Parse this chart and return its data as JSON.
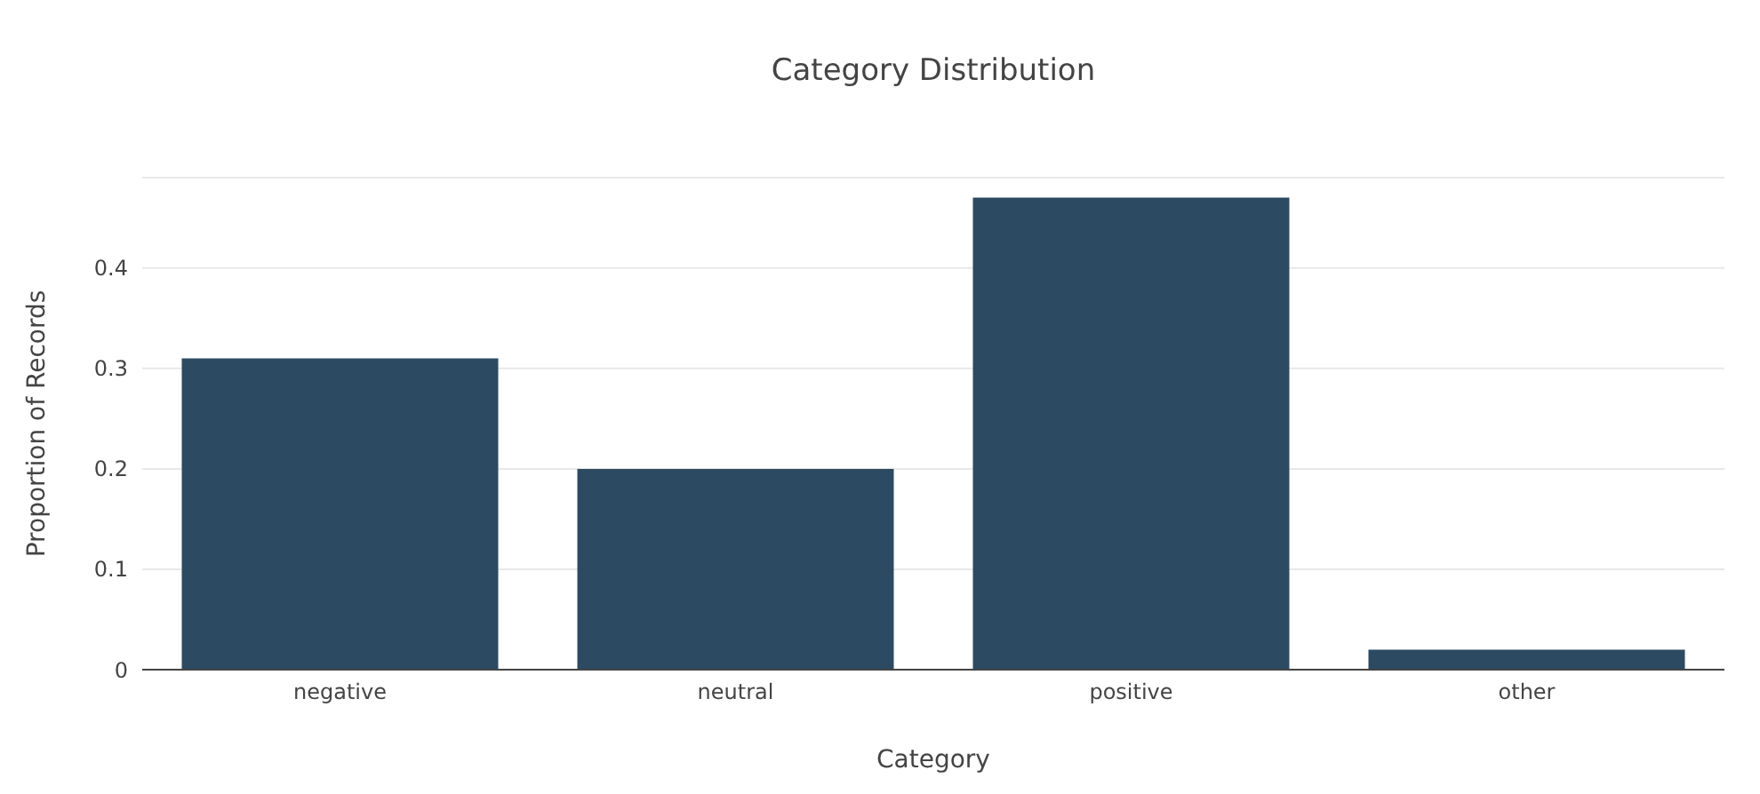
{
  "chart_data": {
    "type": "bar",
    "title": "Category Distribution",
    "xlabel": "Category",
    "ylabel": "Proportion of Records",
    "categories": [
      "negative",
      "neutral",
      "positive",
      "other"
    ],
    "values": [
      0.31,
      0.2,
      0.47,
      0.02
    ],
    "color": "#2c4a62",
    "ylim": [
      0,
      0.49
    ],
    "yticks": [
      0,
      0.1,
      0.2,
      0.3,
      0.4
    ],
    "grid": "y",
    "legend": false
  }
}
